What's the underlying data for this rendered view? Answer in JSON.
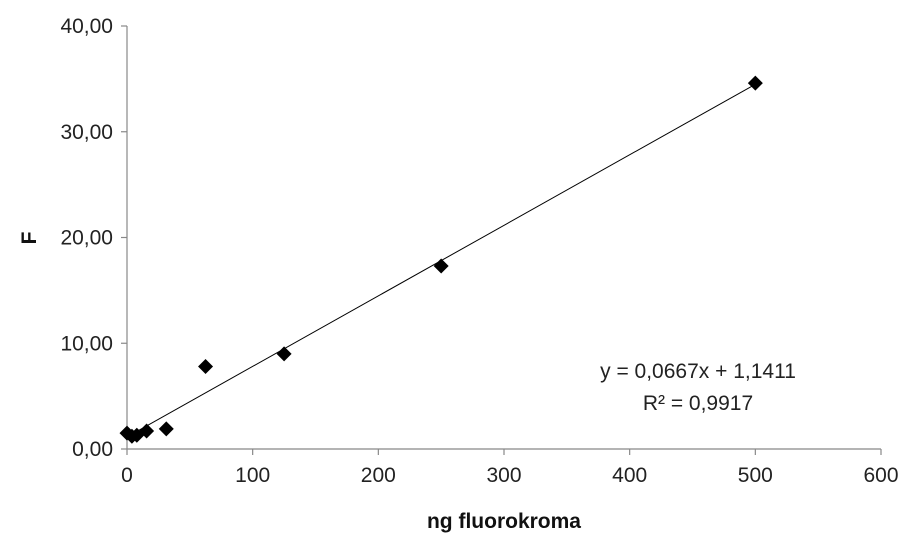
{
  "chart_data": {
    "type": "scatter",
    "xlabel": "ng fluorokroma",
    "ylabel": "F",
    "xlim": [
      0,
      600
    ],
    "ylim": [
      0,
      40
    ],
    "x_ticks": [
      "0",
      "100",
      "200",
      "300",
      "400",
      "500",
      "600"
    ],
    "y_ticks": [
      "0,00",
      "10,00",
      "20,00",
      "30,00",
      "40,00"
    ],
    "grid": false,
    "marker": "diamond",
    "marker_color": "#000000",
    "points": [
      {
        "x": 0,
        "y": 1.5
      },
      {
        "x": 3.9,
        "y": 1.2
      },
      {
        "x": 7.8,
        "y": 1.3
      },
      {
        "x": 15.6,
        "y": 1.7
      },
      {
        "x": 31.25,
        "y": 1.9
      },
      {
        "x": 62.5,
        "y": 7.8
      },
      {
        "x": 125,
        "y": 9.0
      },
      {
        "x": 250,
        "y": 17.3
      },
      {
        "x": 500,
        "y": 34.6
      }
    ],
    "trendline": {
      "type": "linear",
      "slope": 0.0667,
      "intercept": 1.1411,
      "x_range": [
        0,
        500
      ],
      "equation_label": "y = 0,0667x + 1,1411",
      "r2_label": "R² = 0,9917"
    }
  }
}
